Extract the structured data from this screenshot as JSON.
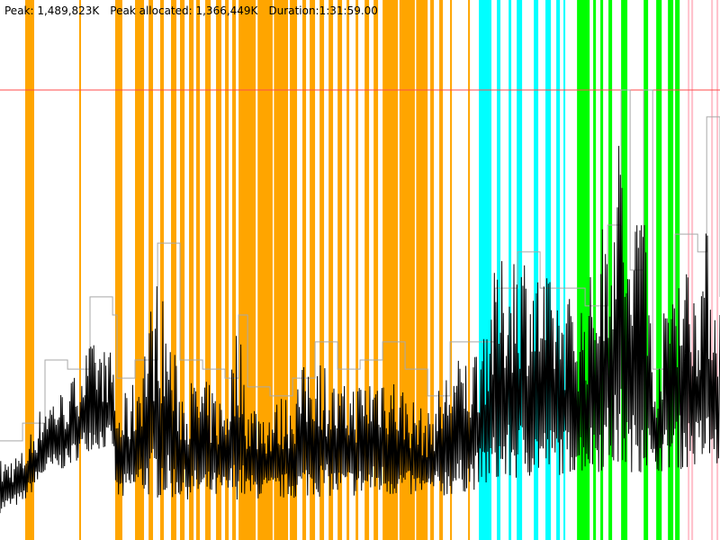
{
  "header": {
    "peak": "Peak: 1,489,823K",
    "peak_allocated": "Peak allocated: 1,366,449K",
    "duration": "Duration:1:31:59.00"
  },
  "chart_data": {
    "type": "line",
    "title": "",
    "xlabel": "",
    "ylabel": "",
    "x_unit": "seconds",
    "y_unit": "K",
    "xlim": [
      0,
      5519
    ],
    "ylim": [
      0,
      1788000
    ],
    "grid": false,
    "peak_line": {
      "value": 1489823,
      "color": "#ff4b4b"
    },
    "colors": {
      "used": "#000000",
      "allocated": "#a9a9a9",
      "orange": "#ffa500",
      "cyan": "#00ffff",
      "green": "#00ff00",
      "pink": "#ffc0cb"
    },
    "series": [
      {
        "key": "used",
        "points": [
          [
            0,
            89000,
            268000
          ],
          [
            173,
            119000,
            298000
          ],
          [
            345,
            209000,
            477000
          ],
          [
            518,
            238000,
            507000
          ],
          [
            690,
            298000,
            656000
          ],
          [
            863,
            298000,
            626000
          ],
          [
            897,
            119000,
            447000
          ],
          [
            1035,
            149000,
            536000
          ],
          [
            1208,
            134000,
            894000
          ],
          [
            1380,
            134000,
            536000
          ],
          [
            1553,
            134000,
            536000
          ],
          [
            1725,
            134000,
            477000
          ],
          [
            1829,
            134000,
            745000
          ],
          [
            1898,
            134000,
            477000
          ],
          [
            2070,
            134000,
            447000
          ],
          [
            2243,
            134000,
            507000
          ],
          [
            2415,
            143000,
            656000
          ],
          [
            2588,
            143000,
            507000
          ],
          [
            2760,
            143000,
            536000
          ],
          [
            2933,
            143000,
            596000
          ],
          [
            3105,
            143000,
            507000
          ],
          [
            3278,
            143000,
            417000
          ],
          [
            3450,
            143000,
            596000
          ],
          [
            3623,
            164000,
            626000
          ],
          [
            3795,
            179000,
            894000
          ],
          [
            3968,
            194000,
            1013000
          ],
          [
            4140,
            209000,
            894000
          ],
          [
            4313,
            215000,
            834000
          ],
          [
            4485,
            224000,
            805000
          ],
          [
            4658,
            224000,
            1132000
          ],
          [
            4761,
            224000,
            1401000
          ],
          [
            4830,
            224000,
            894000
          ],
          [
            4934,
            224000,
            1430000
          ],
          [
            5003,
            224000,
            536000
          ],
          [
            5175,
            232000,
            983000
          ],
          [
            5348,
            238000,
            894000
          ],
          [
            5417,
            238000,
            1043000
          ],
          [
            5519,
            238000,
            745000
          ]
        ]
      },
      {
        "key": "allocated",
        "points": [
          [
            0,
            328000
          ],
          [
            173,
            387000
          ],
          [
            345,
            596000
          ],
          [
            518,
            566000
          ],
          [
            690,
            805000
          ],
          [
            863,
            745000
          ],
          [
            897,
            536000
          ],
          [
            1035,
            596000
          ],
          [
            1208,
            983000
          ],
          [
            1380,
            596000
          ],
          [
            1553,
            566000
          ],
          [
            1725,
            536000
          ],
          [
            1829,
            745000
          ],
          [
            1898,
            507000
          ],
          [
            2070,
            477000
          ],
          [
            2243,
            536000
          ],
          [
            2415,
            656000
          ],
          [
            2588,
            566000
          ],
          [
            2760,
            596000
          ],
          [
            2933,
            656000
          ],
          [
            3105,
            566000
          ],
          [
            3278,
            477000
          ],
          [
            3450,
            656000
          ],
          [
            3623,
            656000
          ],
          [
            3795,
            834000
          ],
          [
            3968,
            954000
          ],
          [
            4140,
            834000
          ],
          [
            4313,
            834000
          ],
          [
            4485,
            775000
          ],
          [
            4658,
            1043000
          ],
          [
            4761,
            1490000
          ],
          [
            4830,
            894000
          ],
          [
            4934,
            1490000
          ],
          [
            5003,
            566000
          ],
          [
            5175,
            1013000
          ],
          [
            5348,
            954000
          ],
          [
            5417,
            1401000
          ],
          [
            5519,
            805000
          ]
        ]
      }
    ],
    "bands": {
      "orange": [
        [
          193,
          262
        ],
        [
          607,
          621
        ],
        [
          883,
          938
        ],
        [
          1035,
          1104
        ],
        [
          1139,
          1173
        ],
        [
          1228,
          1256
        ],
        [
          1311,
          1352
        ],
        [
          1380,
          1415
        ],
        [
          1449,
          1484
        ],
        [
          1504,
          1532
        ],
        [
          1573,
          1615
        ],
        [
          1656,
          1697
        ],
        [
          1725,
          1753
        ],
        [
          1780,
          1808
        ],
        [
          1829,
          1960
        ],
        [
          1975,
          2090
        ],
        [
          2100,
          2208
        ],
        [
          2222,
          2277
        ],
        [
          2318,
          2346
        ],
        [
          2374,
          2415
        ],
        [
          2450,
          2484
        ],
        [
          2519,
          2553
        ],
        [
          2588,
          2622
        ],
        [
          2657,
          2677
        ],
        [
          2726,
          2746
        ],
        [
          2795,
          2829
        ],
        [
          2864,
          2898
        ],
        [
          2933,
          3050
        ],
        [
          3062,
          3180
        ],
        [
          3190,
          3278
        ],
        [
          3298,
          3326
        ],
        [
          3367,
          3395
        ],
        [
          3450,
          3464
        ],
        [
          3588,
          3602
        ]
      ],
      "cyan": [
        [
          3671,
          3767
        ],
        [
          3809,
          3836
        ],
        [
          3899,
          3919
        ],
        [
          3961,
          4002
        ],
        [
          4092,
          4126
        ],
        [
          4181,
          4223
        ],
        [
          4264,
          4292
        ],
        [
          4319,
          4333
        ]
      ],
      "green": [
        [
          4423,
          4520
        ],
        [
          4547,
          4568
        ],
        [
          4602,
          4623
        ],
        [
          4664,
          4692
        ],
        [
          4761,
          4809
        ],
        [
          4934,
          4968
        ],
        [
          5030,
          5072
        ],
        [
          5120,
          5161
        ],
        [
          5175,
          5210
        ]
      ],
      "pink": [
        [
          5272,
          5285
        ],
        [
          5299,
          5313
        ],
        [
          5451,
          5465
        ],
        [
          5492,
          5506
        ]
      ]
    }
  }
}
